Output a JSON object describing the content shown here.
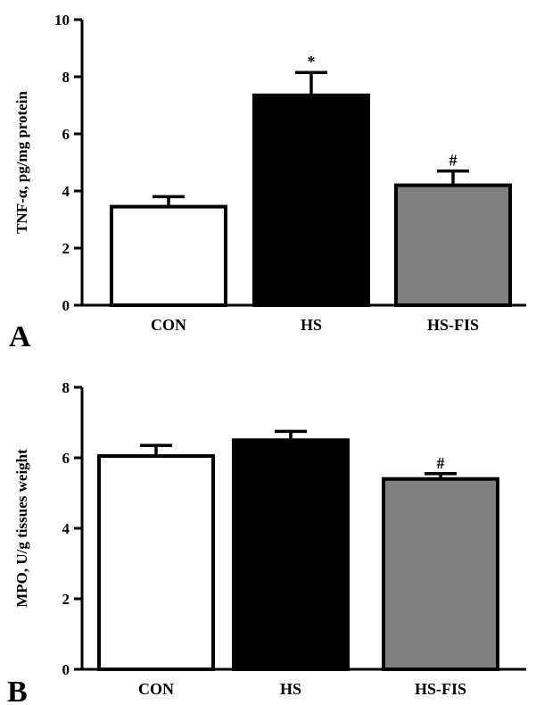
{
  "chart_data": [
    {
      "type": "bar",
      "panel_label": "A",
      "categories": [
        "CON",
        "HS",
        "HS-FIS"
      ],
      "values": [
        3.45,
        7.35,
        4.2
      ],
      "error": [
        0.35,
        0.8,
        0.5
      ],
      "annotations": [
        "",
        "*",
        "#"
      ],
      "bar_colors": [
        "#ffffff",
        "#000000",
        "#808080"
      ],
      "ylabel": "TNF-α, pg/mg protein",
      "ylim": [
        0,
        10
      ],
      "yticks": [
        0,
        2,
        4,
        6,
        8,
        10
      ],
      "grid": false
    },
    {
      "type": "bar",
      "panel_label": "B",
      "categories": [
        "CON",
        "HS",
        "HS-FIS"
      ],
      "values": [
        6.05,
        6.5,
        5.4
      ],
      "error": [
        0.3,
        0.25,
        0.15
      ],
      "annotations": [
        "",
        "",
        "#"
      ],
      "bar_colors": [
        "#ffffff",
        "#000000",
        "#808080"
      ],
      "ylabel": "MPO, U/g tissues weight",
      "ylim": [
        0,
        8
      ],
      "yticks": [
        0,
        2,
        4,
        6,
        8
      ],
      "grid": false
    }
  ]
}
